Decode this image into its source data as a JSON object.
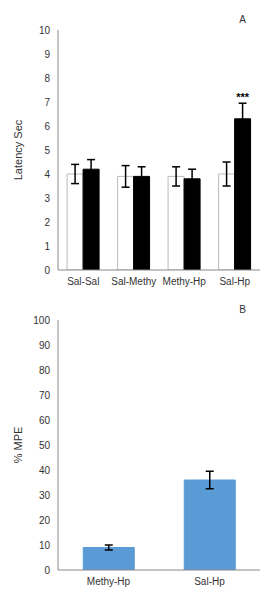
{
  "chart_data": [
    {
      "type": "bar",
      "title": "A",
      "ylabel": "Latency Sec",
      "categories": [
        "Sal-Sal",
        "Sal-Methy",
        "Methy-Hp",
        "Sal-Hp"
      ],
      "series": [
        {
          "color": "#ffffff",
          "values": [
            4.0,
            3.9,
            3.9,
            4.0
          ],
          "errors": [
            0.4,
            0.45,
            0.4,
            0.5
          ]
        },
        {
          "color": "#000000",
          "values": [
            4.2,
            3.9,
            3.8,
            6.3
          ],
          "errors": [
            0.4,
            0.4,
            0.4,
            0.65
          ]
        }
      ],
      "ylim": [
        0,
        10
      ],
      "yticks": [
        0,
        1,
        2,
        3,
        4,
        5,
        6,
        7,
        8,
        9,
        10
      ],
      "annotations": [
        {
          "text": "***",
          "category": "Sal-Hp"
        }
      ]
    },
    {
      "type": "bar",
      "title": "B",
      "ylabel": "% MPE",
      "categories": [
        "Methy-Hp",
        "Sal-Hp"
      ],
      "values": [
        9,
        36
      ],
      "errors": [
        1,
        3.5
      ],
      "color": "#5b9bd5",
      "ylim": [
        0,
        100
      ],
      "yticks": [
        0,
        10,
        20,
        30,
        40,
        50,
        60,
        70,
        80,
        90,
        100
      ]
    }
  ]
}
